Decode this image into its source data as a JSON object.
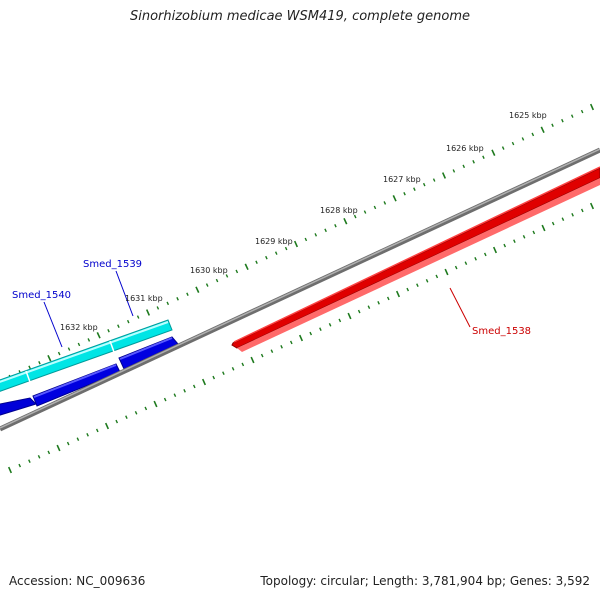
{
  "title": "Sinorhizobium medicae WSM419, complete genome",
  "footer": {
    "accession": "Accession: NC_009636",
    "summary": "Topology: circular; Length: 3,781,904 bp; Genes: 3,592"
  },
  "colors": {
    "backbone": "#808080",
    "ticks": "#1e7a1e",
    "tick_label": "#222222",
    "forward_cds_light": "#00e5e5",
    "forward_cds_dark": "#0000e0",
    "reverse_cds": "#e00000",
    "gene_label_blue": "#0000cc",
    "gene_label_red": "#cc0000"
  },
  "scale_labels": [
    {
      "text": "1625 kbp",
      "pos": 0.0
    },
    {
      "text": "1626 kbp",
      "pos": 1.0
    },
    {
      "text": "1627 kbp",
      "pos": 2.0
    },
    {
      "text": "1628 kbp",
      "pos": 3.0
    },
    {
      "text": "1629 kbp",
      "pos": 4.0
    },
    {
      "text": "1630 kbp",
      "pos": 5.0
    },
    {
      "text": "1631 kbp",
      "pos": 6.0
    },
    {
      "text": "1632 kbp",
      "pos": 7.0
    }
  ],
  "genes": [
    {
      "label": "Smed_1538",
      "strand": "reverse",
      "color_key": "reverse_cds"
    },
    {
      "label": "Smed_1539",
      "strand": "forward",
      "color_key": "forward_cds_dark"
    },
    {
      "label": "Smed_1540",
      "strand": "forward",
      "color_key": "forward_cds_dark"
    }
  ]
}
